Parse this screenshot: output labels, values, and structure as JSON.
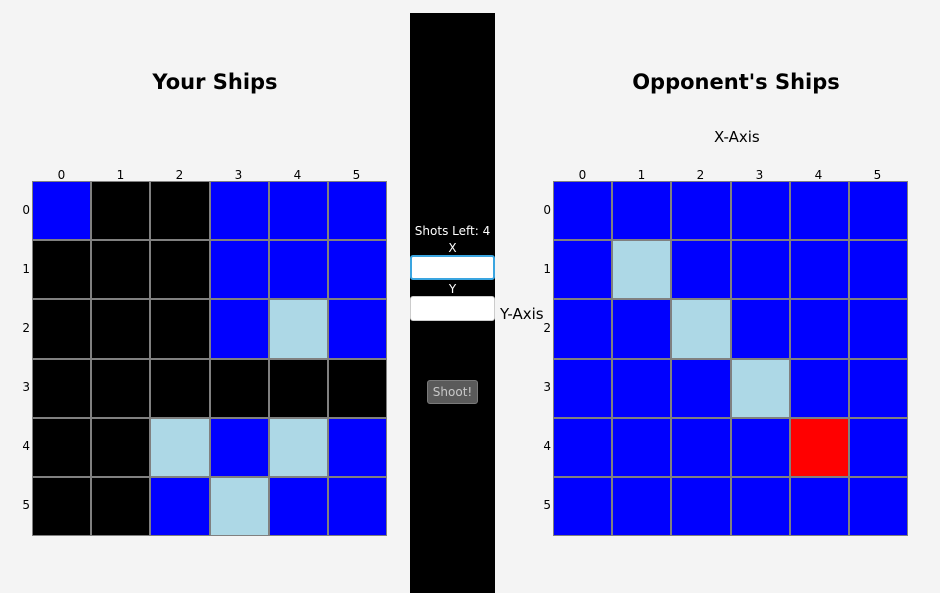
{
  "player": {
    "title": "Your Ships",
    "col_labels": [
      "0",
      "1",
      "2",
      "3",
      "4",
      "5"
    ],
    "row_labels": [
      "0",
      "1",
      "2",
      "3",
      "4",
      "5"
    ],
    "grid": [
      [
        "water",
        "ship",
        "ship",
        "water",
        "water",
        "water"
      ],
      [
        "ship",
        "ship",
        "ship",
        "water",
        "water",
        "water"
      ],
      [
        "ship",
        "ship",
        "ship",
        "water",
        "miss",
        "water"
      ],
      [
        "ship",
        "ship",
        "ship",
        "ship",
        "ship",
        "ship"
      ],
      [
        "ship",
        "ship",
        "miss",
        "water",
        "miss",
        "water"
      ],
      [
        "ship",
        "ship",
        "water",
        "miss",
        "water",
        "water"
      ]
    ]
  },
  "opponent": {
    "title": "Opponent's Ships",
    "x_axis_label": "X-Axis",
    "y_axis_label": "Y-Axis",
    "col_labels": [
      "0",
      "1",
      "2",
      "3",
      "4",
      "5"
    ],
    "row_labels": [
      "0",
      "1",
      "2",
      "3",
      "4",
      "5"
    ],
    "grid": [
      [
        "water",
        "water",
        "water",
        "water",
        "water",
        "water"
      ],
      [
        "water",
        "miss",
        "water",
        "water",
        "water",
        "water"
      ],
      [
        "water",
        "water",
        "miss",
        "water",
        "water",
        "water"
      ],
      [
        "water",
        "water",
        "water",
        "miss",
        "water",
        "water"
      ],
      [
        "water",
        "water",
        "water",
        "water",
        "hit",
        "water"
      ],
      [
        "water",
        "water",
        "water",
        "water",
        "water",
        "water"
      ]
    ]
  },
  "controls": {
    "shots_left": "Shots Left: 4",
    "x_label": "X",
    "y_label": "Y",
    "x_value": "",
    "y_value": "",
    "shoot_label": "Shoot!"
  },
  "colors": {
    "water": "#0000ff",
    "ship": "#000000",
    "miss": "#add8e6",
    "hit": "#ff0000"
  }
}
